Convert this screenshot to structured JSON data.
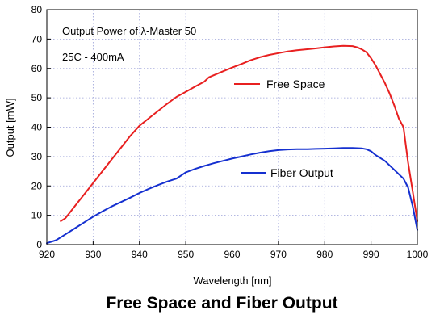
{
  "caption": "Free Space and Fiber Output",
  "chart_data": {
    "type": "line",
    "title": "",
    "annotations": [
      "Output Power of λ-Master 50",
      "25C - 400mA"
    ],
    "xlabel": "Wavelength [nm]",
    "ylabel": "Output [mW]",
    "xlim": [
      920,
      1000
    ],
    "ylim": [
      0,
      80
    ],
    "xticks": [
      920,
      930,
      940,
      950,
      960,
      970,
      980,
      990,
      1000
    ],
    "yticks": [
      0,
      10,
      20,
      30,
      40,
      50,
      60,
      70,
      80
    ],
    "grid": true,
    "legend": "inline labels inside plot, right of center",
    "series": [
      {
        "name": "Free Space",
        "color": "#e82020",
        "x": [
          923,
          924,
          926,
          928,
          930,
          932,
          934,
          936,
          938,
          940,
          942,
          944,
          946,
          948,
          950,
          952,
          954,
          955,
          958,
          960,
          962,
          964,
          966,
          968,
          970,
          972,
          974,
          976,
          978,
          980,
          982,
          984,
          986,
          987,
          988,
          989,
          990,
          991,
          992,
          993,
          994,
          995,
          996,
          997,
          998,
          999,
          1000
        ],
        "values": [
          8,
          9,
          13,
          17,
          21,
          25,
          29,
          33,
          37,
          40.5,
          43,
          45.5,
          48,
          50.3,
          52,
          53.8,
          55.5,
          57,
          59,
          60.3,
          61.5,
          62.8,
          63.8,
          64.6,
          65.2,
          65.8,
          66.2,
          66.5,
          66.8,
          67.2,
          67.5,
          67.7,
          67.6,
          67.2,
          66.5,
          65.5,
          63.5,
          61,
          58,
          55,
          51.5,
          47.5,
          43,
          40,
          28,
          18,
          8
        ]
      },
      {
        "name": "Fiber Output",
        "color": "#1530d0",
        "x": [
          920,
          922,
          924,
          926,
          928,
          930,
          932,
          934,
          936,
          938,
          940,
          942,
          944,
          946,
          948,
          950,
          952,
          954,
          956,
          958,
          960,
          962,
          964,
          966,
          968,
          970,
          972,
          974,
          976,
          978,
          980,
          982,
          984,
          986,
          988,
          989,
          990,
          991,
          992,
          993,
          994,
          995,
          996,
          997,
          998,
          999,
          1000
        ],
        "values": [
          0.5,
          1.5,
          3.5,
          5.5,
          7.5,
          9.5,
          11.3,
          13,
          14.5,
          16,
          17.6,
          19,
          20.3,
          21.5,
          22.5,
          24.6,
          25.8,
          26.8,
          27.7,
          28.5,
          29.3,
          30,
          30.7,
          31.3,
          31.8,
          32.2,
          32.4,
          32.5,
          32.5,
          32.6,
          32.7,
          32.8,
          32.9,
          32.9,
          32.8,
          32.5,
          31.8,
          30.5,
          29.5,
          28.5,
          27,
          25.5,
          24,
          22.5,
          19.5,
          13,
          5
        ]
      }
    ]
  }
}
